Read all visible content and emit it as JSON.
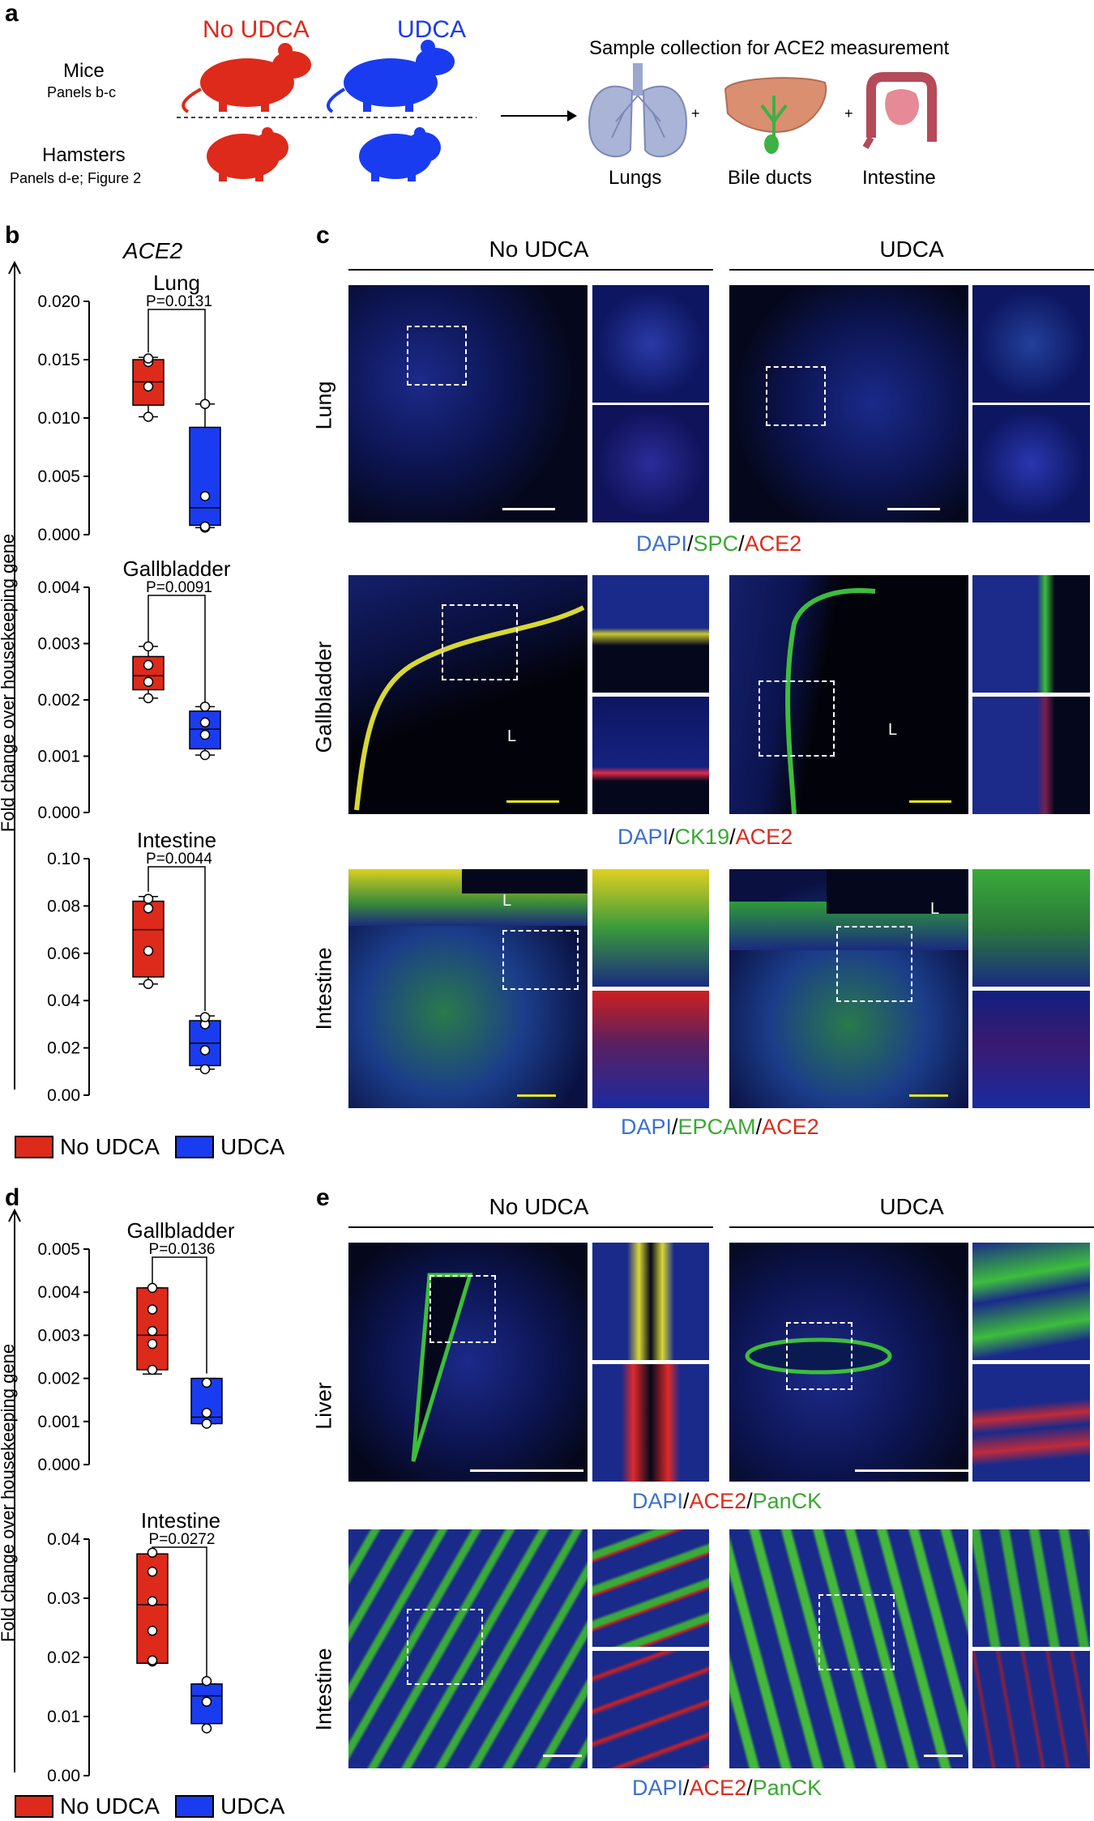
{
  "panel_labels": {
    "a": "a",
    "b": "b",
    "c": "c",
    "d": "d",
    "e": "e"
  },
  "panel_a": {
    "no_udca": "No UDCA",
    "udca": "UDCA",
    "mice": "Mice",
    "mice_sub": "Panels b-c",
    "hamsters": "Hamsters",
    "hamsters_sub": "Panels d-e; Figure 2",
    "sample_title": "Sample collection for ACE2 measurement",
    "organs": [
      "Lungs",
      "Bile ducts",
      "Intestine"
    ],
    "plus": "+"
  },
  "colors": {
    "no_udca": "#dd2a1b",
    "udca": "#1a3cf0",
    "green": "#3aa832",
    "blue_label": "#3b6fd0"
  },
  "panel_b": {
    "gene": "ACE2",
    "ylabel": "Fold change over housekeeping gene",
    "legend": [
      "No UDCA",
      "UDCA"
    ]
  },
  "panel_d": {
    "ylabel": "Fold change over housekeeping gene",
    "legend": [
      "No UDCA",
      "UDCA"
    ]
  },
  "chart_data": [
    {
      "type": "box",
      "title": "Lung",
      "ylim": [
        0,
        0.02
      ],
      "yticks": [
        "0.000",
        "0.005",
        "0.010",
        "0.015",
        "0.020"
      ],
      "p_value": "P=0.0131",
      "groups": [
        {
          "name": "No UDCA",
          "q1": 0.0111,
          "median": 0.0131,
          "q3": 0.015,
          "min": 0.0101,
          "max": 0.0152,
          "points": [
            0.0101,
            0.0127,
            0.0148,
            0.0151
          ]
        },
        {
          "name": "UDCA",
          "q1": 0.0008,
          "median": 0.0023,
          "q3": 0.0092,
          "min": 0.0006,
          "max": 0.0112,
          "points": [
            0.0006,
            0.0033,
            0.0112,
            0.0007
          ]
        }
      ]
    },
    {
      "type": "box",
      "title": "Gallbladder",
      "ylim": [
        0,
        0.004
      ],
      "yticks": [
        "0.000",
        "0.001",
        "0.002",
        "0.003",
        "0.004"
      ],
      "p_value": "P=0.0091",
      "groups": [
        {
          "name": "No UDCA",
          "q1": 0.00218,
          "median": 0.00243,
          "q3": 0.00277,
          "min": 0.00203,
          "max": 0.00295,
          "points": [
            0.00203,
            0.00232,
            0.00262,
            0.00295
          ]
        },
        {
          "name": "UDCA",
          "q1": 0.00113,
          "median": 0.00148,
          "q3": 0.0018,
          "min": 0.00102,
          "max": 0.00188,
          "points": [
            0.00102,
            0.00138,
            0.0016,
            0.00188
          ]
        }
      ]
    },
    {
      "type": "box",
      "title": "Intestine",
      "ylim": [
        0,
        0.1
      ],
      "yticks": [
        "0.00",
        "0.02",
        "0.04",
        "0.06",
        "0.08",
        "0.10"
      ],
      "p_value": "P=0.0044",
      "groups": [
        {
          "name": "No UDCA",
          "q1": 0.05,
          "median": 0.07,
          "q3": 0.082,
          "min": 0.047,
          "max": 0.084,
          "points": [
            0.047,
            0.061,
            0.079,
            0.083
          ]
        },
        {
          "name": "UDCA",
          "q1": 0.0125,
          "median": 0.022,
          "q3": 0.0315,
          "min": 0.011,
          "max": 0.0335,
          "points": [
            0.011,
            0.019,
            0.03,
            0.033
          ]
        }
      ]
    },
    {
      "type": "box",
      "title": "Gallbladder",
      "ylim": [
        0,
        0.005
      ],
      "yticks": [
        "0.000",
        "0.001",
        "0.002",
        "0.003",
        "0.004",
        "0.005"
      ],
      "p_value": "P=0.0136",
      "groups": [
        {
          "name": "No UDCA",
          "q1": 0.0022,
          "median": 0.003,
          "q3": 0.0041,
          "min": 0.0021,
          "max": 0.0041,
          "points": [
            0.0022,
            0.0028,
            0.0031,
            0.0036,
            0.0041
          ]
        },
        {
          "name": "UDCA",
          "q1": 0.00095,
          "median": 0.0011,
          "q3": 0.002,
          "min": 0.00095,
          "max": 0.002,
          "points": [
            0.00095,
            0.0012,
            0.0019
          ]
        }
      ]
    },
    {
      "type": "box",
      "title": "Intestine",
      "ylim": [
        0,
        0.04
      ],
      "yticks": [
        "0.00",
        "0.01",
        "0.02",
        "0.03",
        "0.04"
      ],
      "p_value": "P=0.0272",
      "groups": [
        {
          "name": "No UDCA",
          "q1": 0.019,
          "median": 0.0289,
          "q3": 0.0375,
          "min": 0.019,
          "max": 0.0375,
          "points": [
            0.0193,
            0.0195,
            0.0245,
            0.0295,
            0.0345,
            0.0377
          ]
        },
        {
          "name": "UDCA",
          "q1": 0.0088,
          "median": 0.0135,
          "q3": 0.0155,
          "min": 0.0088,
          "max": 0.0155,
          "points": [
            0.008,
            0.0125,
            0.016
          ]
        }
      ]
    }
  ],
  "panel_c": {
    "headers": [
      "No UDCA",
      "UDCA"
    ],
    "rows": [
      "Lung",
      "Gallbladder",
      "Intestine"
    ],
    "lumen": "L",
    "stains": [
      [
        {
          "t": "DAPI",
          "c": "blue"
        },
        {
          "t": "/",
          "c": "k"
        },
        {
          "t": "SPC",
          "c": "green"
        },
        {
          "t": "/",
          "c": "k"
        },
        {
          "t": "ACE2",
          "c": "red"
        }
      ],
      [
        {
          "t": "DAPI",
          "c": "blue"
        },
        {
          "t": "/",
          "c": "k"
        },
        {
          "t": "CK19",
          "c": "green"
        },
        {
          "t": "/",
          "c": "k"
        },
        {
          "t": "ACE2",
          "c": "red"
        }
      ],
      [
        {
          "t": "DAPI",
          "c": "blue"
        },
        {
          "t": "/",
          "c": "k"
        },
        {
          "t": "EPCAM",
          "c": "green"
        },
        {
          "t": "/",
          "c": "k"
        },
        {
          "t": "ACE2",
          "c": "red"
        }
      ]
    ]
  },
  "panel_e": {
    "headers": [
      "No UDCA",
      "UDCA"
    ],
    "rows": [
      "Liver",
      "Intestine"
    ],
    "stains": [
      [
        {
          "t": "DAPI",
          "c": "blue"
        },
        {
          "t": "/",
          "c": "k"
        },
        {
          "t": "ACE2",
          "c": "red"
        },
        {
          "t": "/",
          "c": "k"
        },
        {
          "t": "PanCK",
          "c": "green"
        }
      ],
      [
        {
          "t": "DAPI",
          "c": "blue"
        },
        {
          "t": "/",
          "c": "k"
        },
        {
          "t": "ACE2",
          "c": "red"
        },
        {
          "t": "/",
          "c": "k"
        },
        {
          "t": "PanCK",
          "c": "green"
        }
      ]
    ]
  }
}
